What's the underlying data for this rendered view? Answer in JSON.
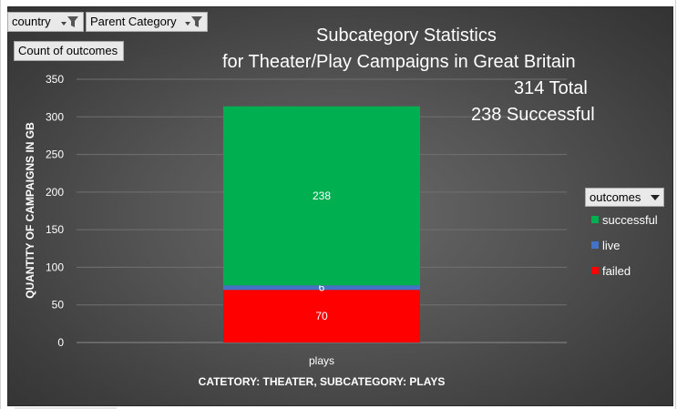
{
  "filters": {
    "country_label": "country",
    "parent_category_label": "Parent Category",
    "value_field_label": "Count  of outcomes"
  },
  "title_lines": [
    "Subcategory Statistics",
    "for Theater/Play Campaigns in Great Britain",
    "314 Total",
    "238 Successful"
  ],
  "legend": {
    "dropdown_label": "outcomes",
    "dropdown_icon": "dropdown-arrow-icon"
  },
  "colors": {
    "successful": "#00b050",
    "live": "#4472c4",
    "failed": "#ff0000",
    "axis_text": "#ffffff",
    "gridline": "#707070"
  },
  "chart_data": {
    "type": "bar",
    "stacked": true,
    "categories": [
      "plays"
    ],
    "series": [
      {
        "name": "failed",
        "values": [
          70
        ],
        "color": "#ff0000"
      },
      {
        "name": "live",
        "values": [
          6
        ],
        "color": "#4472c4"
      },
      {
        "name": "successful",
        "values": [
          238
        ],
        "color": "#00b050"
      }
    ],
    "data_labels": [
      "70",
      "6",
      "238"
    ],
    "legend_order": [
      "successful",
      "live",
      "failed"
    ],
    "xlabel": "CATETORY: THEATER, SUBCATEGORY: PLAYS",
    "ylabel": "QUANTITY OF CAMPAIGNS IN GB",
    "ylim": [
      0,
      350
    ],
    "yticks": [
      0,
      50,
      100,
      150,
      200,
      250,
      300,
      350
    ],
    "grid": true,
    "legend_position": "right"
  }
}
